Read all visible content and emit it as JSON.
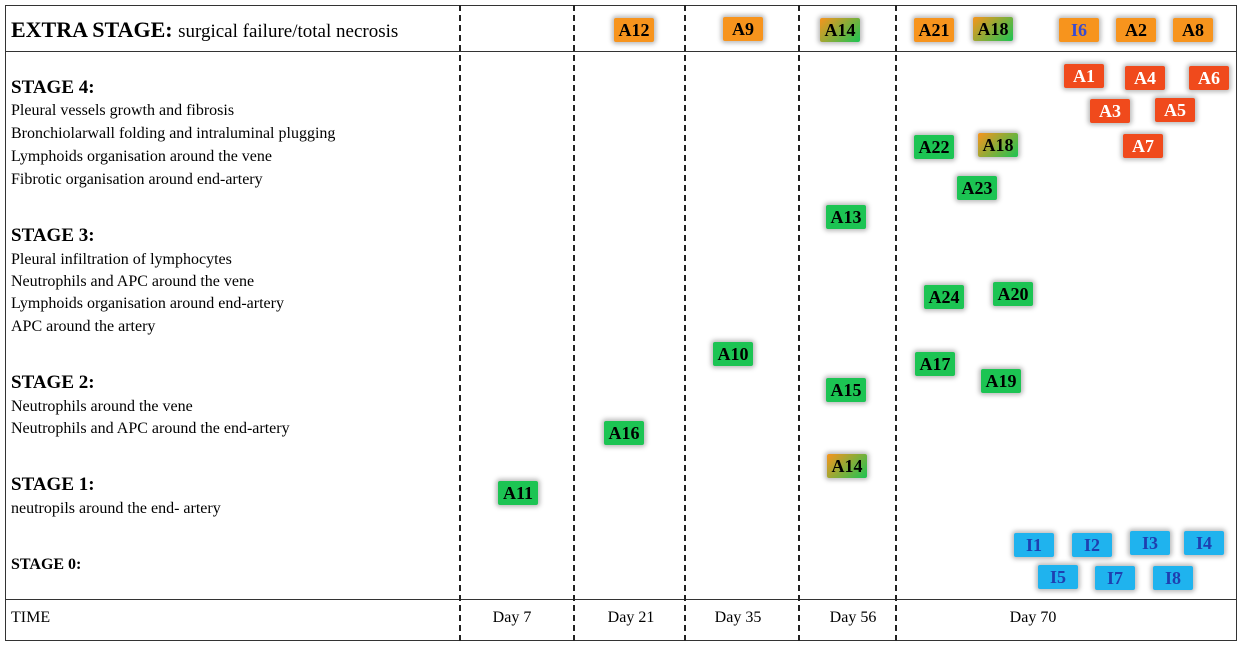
{
  "extra_stage": {
    "title": "EXTRA STAGE:",
    "subtitle": "surgical failure/total necrosis"
  },
  "stages": [
    {
      "title": "STAGE 4:",
      "lines": [
        "Pleural vessels growth and fibrosis",
        "Bronchiolarwall  folding and intraluminal  plugging",
        "Lymphoids organisation around the vene",
        "Fibrotic organisation around end-artery"
      ]
    },
    {
      "title": "STAGE 3:",
      "lines": [
        "Pleural infiltration  of lymphocytes",
        "Neutrophils and APC around the vene",
        "Lymphoids organisation around end-artery",
        "APC around the artery"
      ]
    },
    {
      "title": "STAGE 2:",
      "lines": [
        "Neutrophils around the vene",
        "Neutrophils and APC around the end-artery"
      ]
    },
    {
      "title": "STAGE 1:",
      "lines": [
        " neutropils around the end- artery"
      ]
    },
    {
      "title": "STAGE 0:",
      "lines": []
    }
  ],
  "time": {
    "label": "TIME",
    "days": [
      "Day 7",
      "Day 21",
      "Day 35",
      "Day 56",
      "Day 70"
    ]
  },
  "colors": {
    "green": "#1cc453",
    "green_text": "#000000",
    "orange": "#f7941d",
    "orange_text": "#000000",
    "red": "#f04a1c",
    "red_text": "#ffffff",
    "blue": "#1fb3ee",
    "blue_text": "#1f3fb0",
    "mix": "#9aa53a",
    "mix_text": "#000000",
    "i6_text": "#3a4bd0"
  },
  "tags": [
    {
      "label": "A12",
      "color": "orange",
      "day": "Day 21",
      "stage": "EXTRA"
    },
    {
      "label": "A9",
      "color": "orange",
      "day": "Day 35",
      "stage": "EXTRA"
    },
    {
      "label": "A14",
      "color": "mix",
      "day": "Day 56",
      "stage": "EXTRA"
    },
    {
      "label": "A21",
      "color": "orange",
      "day": "Day 70",
      "stage": "EXTRA"
    },
    {
      "label": "A18",
      "color": "mix",
      "day": "Day 70",
      "stage": "EXTRA"
    },
    {
      "label": "I6",
      "color": "orange",
      "day": "Day 70",
      "stage": "EXTRA"
    },
    {
      "label": "A2",
      "color": "orange",
      "day": "Day 70",
      "stage": "EXTRA"
    },
    {
      "label": "A8",
      "color": "orange",
      "day": "Day 70",
      "stage": "EXTRA"
    },
    {
      "label": "A1",
      "color": "red",
      "day": "Day 70",
      "stage": "4"
    },
    {
      "label": "A4",
      "color": "red",
      "day": "Day 70",
      "stage": "4"
    },
    {
      "label": "A6",
      "color": "red",
      "day": "Day 70",
      "stage": "4"
    },
    {
      "label": "A3",
      "color": "red",
      "day": "Day 70",
      "stage": "4"
    },
    {
      "label": "A5",
      "color": "red",
      "day": "Day 70",
      "stage": "4"
    },
    {
      "label": "A7",
      "color": "red",
      "day": "Day 70",
      "stage": "4"
    },
    {
      "label": "A22",
      "color": "green",
      "day": "Day 70",
      "stage": "4"
    },
    {
      "label": "A18",
      "color": "mix",
      "day": "Day 70",
      "stage": "4"
    },
    {
      "label": "A23",
      "color": "green",
      "day": "Day 70",
      "stage": "4"
    },
    {
      "label": "A13",
      "color": "green",
      "day": "Day 56",
      "stage": "3"
    },
    {
      "label": "A24",
      "color": "green",
      "day": "Day 70",
      "stage": "3"
    },
    {
      "label": "A20",
      "color": "green",
      "day": "Day 70",
      "stage": "3"
    },
    {
      "label": "A10",
      "color": "green",
      "day": "Day 35",
      "stage": "2"
    },
    {
      "label": "A17",
      "color": "green",
      "day": "Day 70",
      "stage": "2"
    },
    {
      "label": "A15",
      "color": "green",
      "day": "Day 56",
      "stage": "2"
    },
    {
      "label": "A19",
      "color": "green",
      "day": "Day 70",
      "stage": "2"
    },
    {
      "label": "A16",
      "color": "green",
      "day": "Day 21",
      "stage": "2"
    },
    {
      "label": "A14",
      "color": "mix",
      "day": "Day 56",
      "stage": "1"
    },
    {
      "label": "A11",
      "color": "green",
      "day": "Day 7",
      "stage": "1"
    },
    {
      "label": "I1",
      "color": "blue",
      "day": "Day 70",
      "stage": "0"
    },
    {
      "label": "I2",
      "color": "blue",
      "day": "Day 70",
      "stage": "0"
    },
    {
      "label": "I3",
      "color": "blue",
      "day": "Day 70",
      "stage": "0"
    },
    {
      "label": "I4",
      "color": "blue",
      "day": "Day 70",
      "stage": "0"
    },
    {
      "label": "I5",
      "color": "blue",
      "day": "Day 70",
      "stage": "0"
    },
    {
      "label": "I7",
      "color": "blue",
      "day": "Day 70",
      "stage": "0"
    },
    {
      "label": "I8",
      "color": "blue",
      "day": "Day 70",
      "stage": "0"
    }
  ]
}
